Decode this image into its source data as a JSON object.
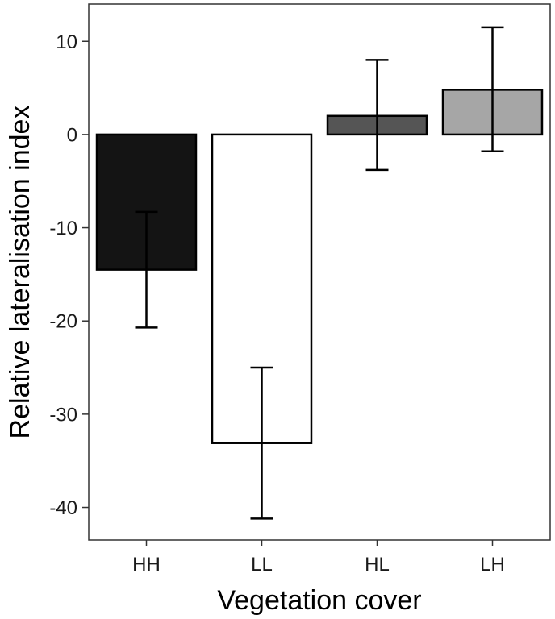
{
  "chart_data": {
    "type": "bar",
    "title": "",
    "xlabel": "Vegetation cover",
    "ylabel": "Relative lateralisation index",
    "categories": [
      "HH",
      "LL",
      "HL",
      "LH"
    ],
    "values": [
      -14.5,
      -33.1,
      2.0,
      4.8
    ],
    "error_low": [
      -20.7,
      -41.2,
      -3.8,
      -1.8
    ],
    "error_high": [
      -8.3,
      -25.0,
      8.0,
      11.5
    ],
    "bar_colors": [
      "#141414",
      "#ffffff",
      "#555555",
      "#a6a6a6"
    ],
    "ylim": [
      -43.5,
      14
    ],
    "yticks": [
      10,
      0,
      -10,
      -20,
      -30,
      -40
    ],
    "ytick_labels": [
      "10",
      "0",
      "-10",
      "-20",
      "-30",
      "-40"
    ],
    "grid": false,
    "legend": "none"
  }
}
